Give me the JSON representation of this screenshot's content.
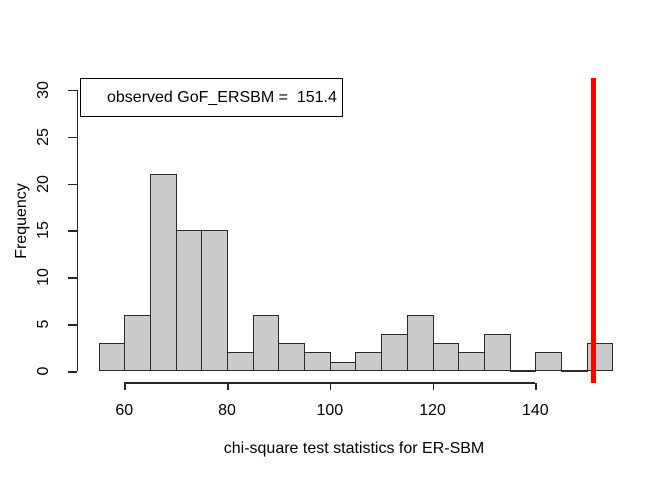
{
  "chart_data": {
    "type": "bar",
    "subtype": "histogram",
    "title": "",
    "xlabel": "chi-square test statistics for ER-SBM",
    "ylabel": "Frequency",
    "breaks": [
      55,
      60,
      65,
      70,
      75,
      80,
      85,
      90,
      95,
      100,
      105,
      110,
      115,
      120,
      125,
      130,
      135,
      140,
      145,
      150,
      155
    ],
    "counts": [
      3,
      6,
      21,
      15,
      15,
      2,
      6,
      3,
      2,
      1,
      2,
      4,
      6,
      3,
      2,
      4,
      0,
      2,
      0,
      3
    ],
    "x_ticks": [
      60,
      80,
      100,
      120,
      140
    ],
    "y_ticks": [
      0,
      5,
      10,
      15,
      20,
      25,
      30
    ],
    "xlim": [
      51,
      159
    ],
    "ylim": [
      0,
      30
    ],
    "grid": false,
    "legend_position": "topleft",
    "legend_text": "observed GoF_ERSBM =  151.4",
    "observed_value": 151.4,
    "vline": {
      "x": 151.4,
      "color": "#FF0000"
    },
    "colors": {
      "bar_fill": "#CBCBCB",
      "bar_border": "#2B2B2B",
      "axis": "#262626",
      "text": "#000000",
      "legend_border": "#000000",
      "background": "#FFFFFF"
    }
  }
}
